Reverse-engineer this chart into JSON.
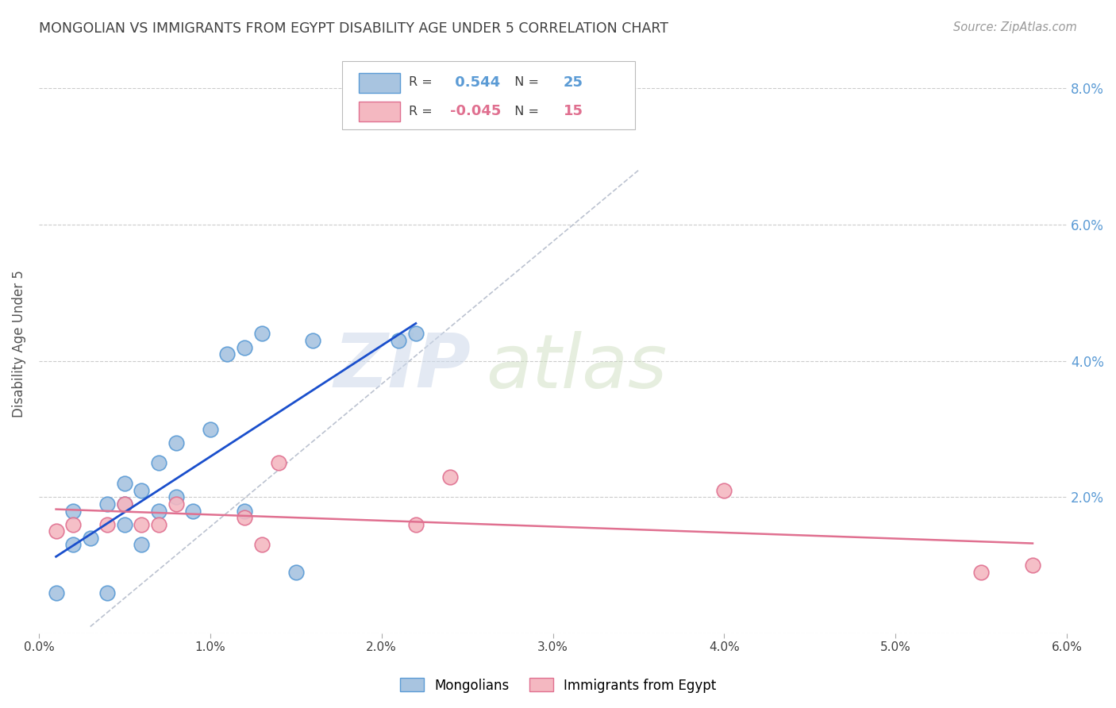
{
  "title": "MONGOLIAN VS IMMIGRANTS FROM EGYPT DISABILITY AGE UNDER 5 CORRELATION CHART",
  "source": "Source: ZipAtlas.com",
  "ylabel": "Disability Age Under 5",
  "xlim": [
    0.0,
    0.06
  ],
  "ylim": [
    0.0,
    0.085
  ],
  "xticks": [
    0.0,
    0.01,
    0.02,
    0.03,
    0.04,
    0.05,
    0.06
  ],
  "yticks": [
    0.0,
    0.02,
    0.04,
    0.06,
    0.08
  ],
  "ytick_labels": [
    "",
    "2.0%",
    "4.0%",
    "6.0%",
    "8.0%"
  ],
  "xtick_labels": [
    "0.0%",
    "1.0%",
    "2.0%",
    "3.0%",
    "4.0%",
    "5.0%",
    "6.0%"
  ],
  "mongolian_color": "#a8c4e0",
  "mongolian_edge_color": "#5b9bd5",
  "egypt_color": "#f4b8c1",
  "egypt_edge_color": "#e07090",
  "mongolian_R": 0.544,
  "mongolian_N": 25,
  "egypt_R": -0.045,
  "egypt_N": 15,
  "mongolian_line_color": "#1a4fcc",
  "egypt_line_color": "#e07090",
  "watermark_zip": "ZIP",
  "watermark_atlas": "atlas",
  "mongolian_x": [
    0.001,
    0.002,
    0.002,
    0.003,
    0.004,
    0.004,
    0.005,
    0.005,
    0.005,
    0.006,
    0.006,
    0.007,
    0.007,
    0.008,
    0.008,
    0.009,
    0.01,
    0.011,
    0.012,
    0.012,
    0.013,
    0.015,
    0.016,
    0.021,
    0.022
  ],
  "mongolian_y": [
    0.006,
    0.013,
    0.018,
    0.014,
    0.006,
    0.019,
    0.016,
    0.019,
    0.022,
    0.013,
    0.021,
    0.025,
    0.018,
    0.028,
    0.02,
    0.018,
    0.03,
    0.041,
    0.042,
    0.018,
    0.044,
    0.009,
    0.043,
    0.043,
    0.044
  ],
  "egypt_x": [
    0.001,
    0.002,
    0.004,
    0.005,
    0.006,
    0.007,
    0.008,
    0.012,
    0.013,
    0.014,
    0.022,
    0.024,
    0.04,
    0.055,
    0.058
  ],
  "egypt_y": [
    0.015,
    0.016,
    0.016,
    0.019,
    0.016,
    0.016,
    0.019,
    0.017,
    0.013,
    0.025,
    0.016,
    0.023,
    0.021,
    0.009,
    0.01
  ],
  "background_color": "#ffffff",
  "grid_color": "#cccccc",
  "title_color": "#404040",
  "right_tick_color": "#5b9bd5",
  "dash_line_x": [
    0.003,
    0.035
  ],
  "dash_line_y": [
    0.001,
    0.068
  ]
}
